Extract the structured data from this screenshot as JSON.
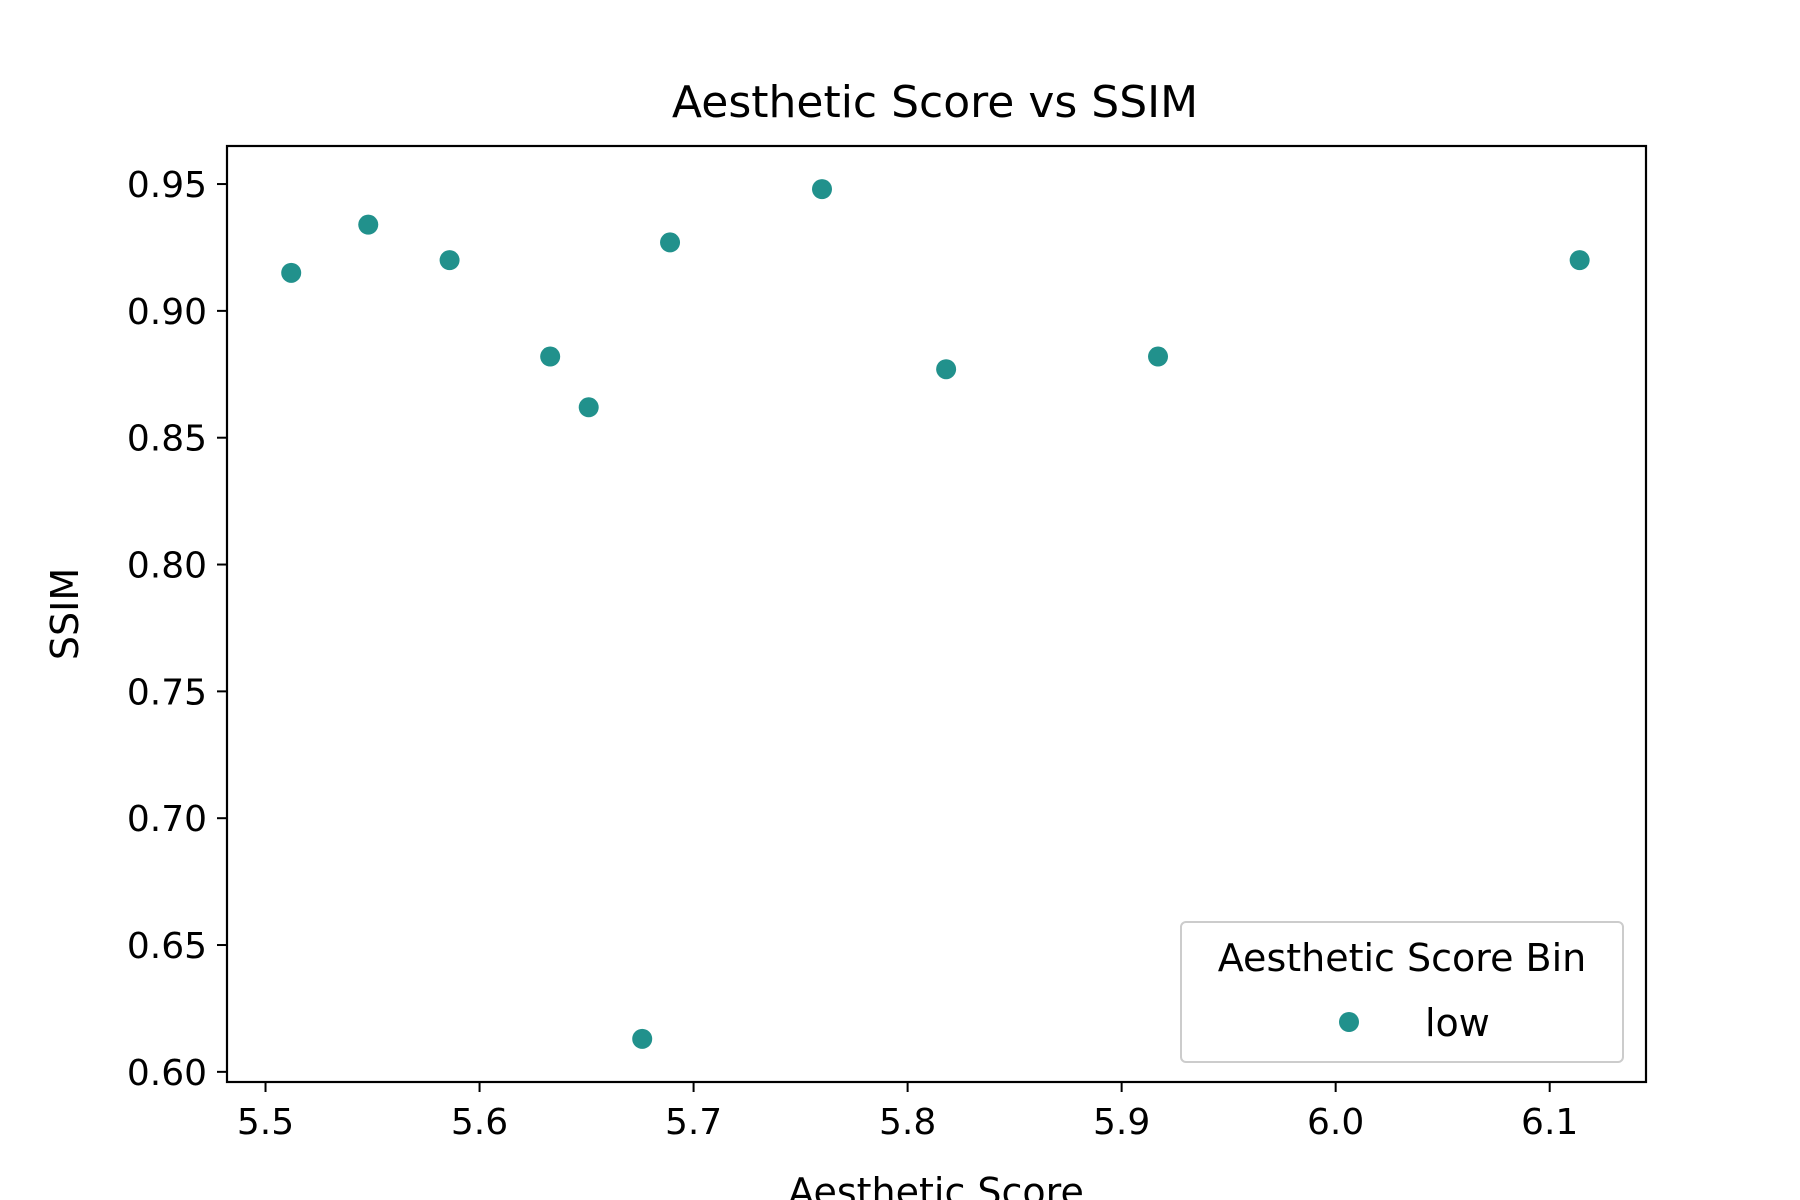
{
  "chart_data": {
    "type": "scatter",
    "title": "Aesthetic Score vs SSIM",
    "xlabel": "Aesthetic Score",
    "ylabel": "SSIM",
    "xlim": [
      5.482,
      6.145
    ],
    "ylim": [
      0.596,
      0.965
    ],
    "xticks": [
      5.5,
      5.6,
      5.7,
      5.8,
      5.9,
      6.0,
      6.1
    ],
    "xtick_labels": [
      "5.5",
      "5.6",
      "5.7",
      "5.8",
      "5.9",
      "6.0",
      "6.1"
    ],
    "yticks": [
      0.6,
      0.65,
      0.7,
      0.75,
      0.8,
      0.85,
      0.9,
      0.95
    ],
    "ytick_labels": [
      "0.60",
      "0.65",
      "0.70",
      "0.75",
      "0.80",
      "0.85",
      "0.90",
      "0.95"
    ],
    "grid": false,
    "legend": {
      "title": "Aesthetic Score Bin",
      "placement": "lower-right",
      "entries": [
        "low"
      ]
    },
    "series": [
      {
        "name": "low",
        "color": "#21918c",
        "x": [
          5.512,
          5.548,
          5.586,
          5.633,
          5.651,
          5.676,
          5.689,
          5.76,
          5.818,
          5.917,
          6.114
        ],
        "y": [
          0.915,
          0.934,
          0.92,
          0.882,
          0.862,
          0.613,
          0.927,
          0.948,
          0.877,
          0.882,
          0.92
        ]
      }
    ]
  }
}
